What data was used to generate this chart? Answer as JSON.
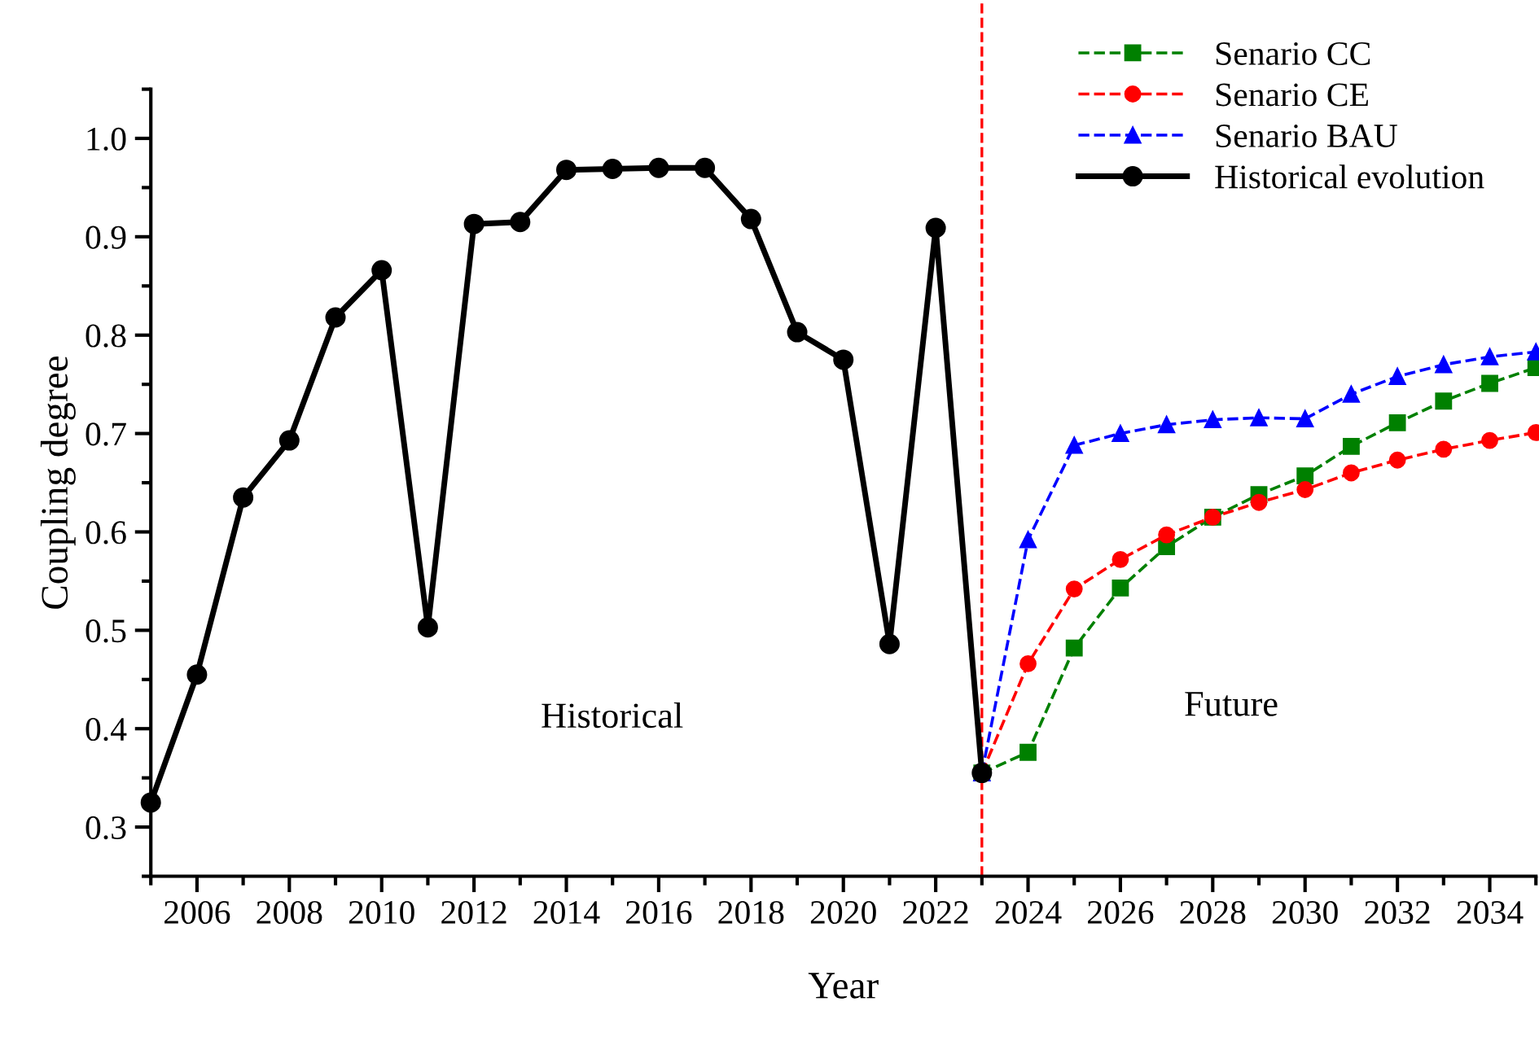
{
  "chart_data": {
    "type": "line",
    "xlabel": "Year",
    "ylabel": "Coupling degree",
    "xlim": [
      2005,
      2035
    ],
    "xticks": [
      2006,
      2008,
      2010,
      2012,
      2014,
      2016,
      2018,
      2020,
      2022,
      2024,
      2026,
      2028,
      2030,
      2032,
      2034
    ],
    "ylim": [
      0.25,
      1.05
    ],
    "yticks": [
      0.3,
      0.4,
      0.5,
      0.6,
      0.7,
      0.8,
      0.9,
      {
        "value": 1.0,
        "label": "1.0"
      }
    ],
    "grid": false,
    "legend": "top right",
    "series": [
      {
        "name": "Senario CC",
        "color": "#008000",
        "marker": "square",
        "line_style": "dashed",
        "x": [
          2023,
          2024,
          2025,
          2026,
          2027,
          2028,
          2029,
          2030,
          2031,
          2032,
          2033,
          2034,
          2035
        ],
        "values": [
          0.355,
          0.376,
          0.482,
          0.543,
          0.585,
          0.615,
          0.638,
          0.657,
          0.687,
          0.711,
          0.733,
          0.751,
          0.767
        ]
      },
      {
        "name": "Senario CE",
        "color": "#ff0000",
        "marker": "circle",
        "line_style": "dashed",
        "x": [
          2023,
          2024,
          2025,
          2026,
          2027,
          2028,
          2029,
          2030,
          2031,
          2032,
          2033,
          2034,
          2035
        ],
        "values": [
          0.355,
          0.466,
          0.542,
          0.572,
          0.597,
          0.615,
          0.63,
          0.643,
          0.66,
          0.673,
          0.684,
          0.693,
          0.701
        ]
      },
      {
        "name": "Senario BAU",
        "color": "#0000ff",
        "marker": "triangle",
        "line_style": "dashed",
        "x": [
          2023,
          2024,
          2025,
          2026,
          2027,
          2028,
          2029,
          2030,
          2031,
          2032,
          2033,
          2034,
          2035
        ],
        "values": [
          0.355,
          0.592,
          0.688,
          0.7,
          0.709,
          0.714,
          0.716,
          0.715,
          0.74,
          0.758,
          0.77,
          0.778,
          0.783
        ]
      },
      {
        "name": "Historical evolution",
        "color": "#000000",
        "marker": "circle",
        "line_style": "solid",
        "x": [
          2005,
          2006,
          2007,
          2008,
          2009,
          2010,
          2011,
          2012,
          2013,
          2014,
          2015,
          2016,
          2017,
          2018,
          2019,
          2020,
          2021,
          2022,
          2023
        ],
        "values": [
          0.325,
          0.455,
          0.635,
          0.693,
          0.818,
          0.866,
          0.503,
          0.913,
          0.915,
          0.968,
          0.969,
          0.97,
          0.97,
          0.918,
          0.803,
          0.775,
          0.486,
          0.909,
          0.355
        ]
      }
    ],
    "ref_lines": [
      {
        "axis": "x",
        "value": 2023,
        "color": "#ff0000",
        "line_style": "dashed"
      }
    ],
    "annotations": [
      "Historical",
      "Future"
    ]
  }
}
